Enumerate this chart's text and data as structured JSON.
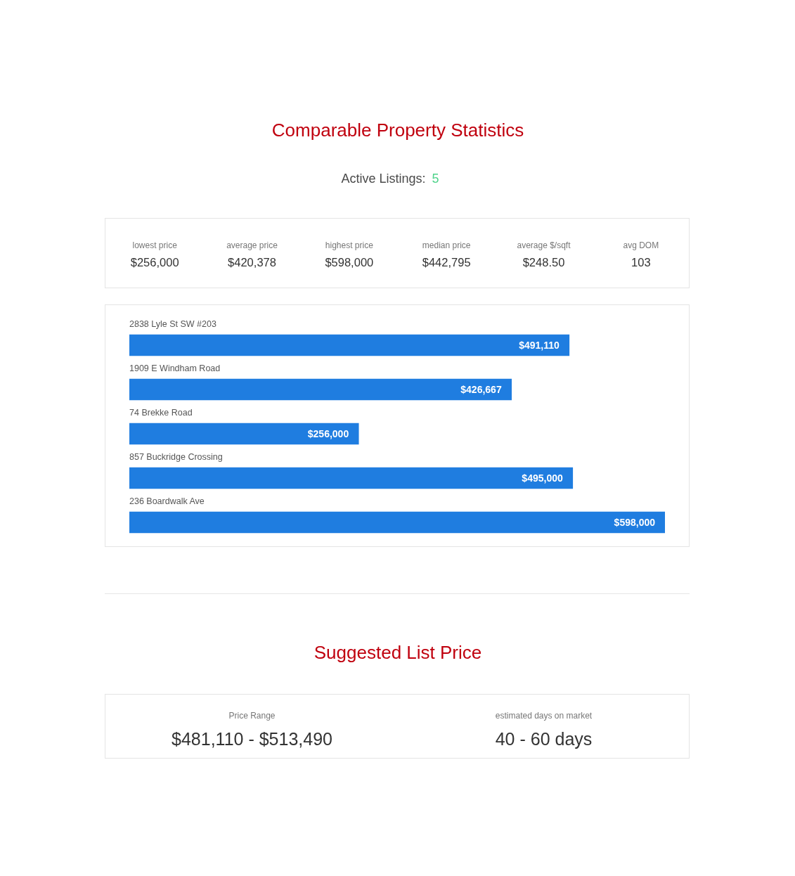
{
  "chart_data": [
    {
      "type": "other",
      "title": "Comparable Property Statistics",
      "subtitle": "Active Listings: 5",
      "annotations": [
        "lowest price",
        "$256,000",
        "average price",
        "$420,378",
        "highest price",
        "$598,000",
        "median price",
        "$442,795",
        "average $/sqft",
        "$248.50",
        "avg DOM",
        "103"
      ]
    },
    {
      "type": "bar",
      "orientation": "horizontal",
      "categories": [
        "2838 Lyle St SW #203",
        "1909 E Windham Road",
        "74 Brekke Road",
        "857 Buckridge Crossing",
        "236 Boardwalk Ave"
      ],
      "values": [
        491110,
        426667,
        256000,
        495000,
        598000
      ],
      "value_labels": [
        "$491,110",
        "$426,667",
        "$256,000",
        "$495,000",
        "$598,000"
      ],
      "color": "#1f7de0",
      "xlim": [
        0,
        598000
      ],
      "tick_labels": "y"
    },
    {
      "type": "other",
      "title": "Suggested List Price",
      "annotations": [
        "Price Range",
        "$481,110 - $513,490",
        "estimated days on market",
        "40 - 60 days"
      ]
    }
  ]
}
